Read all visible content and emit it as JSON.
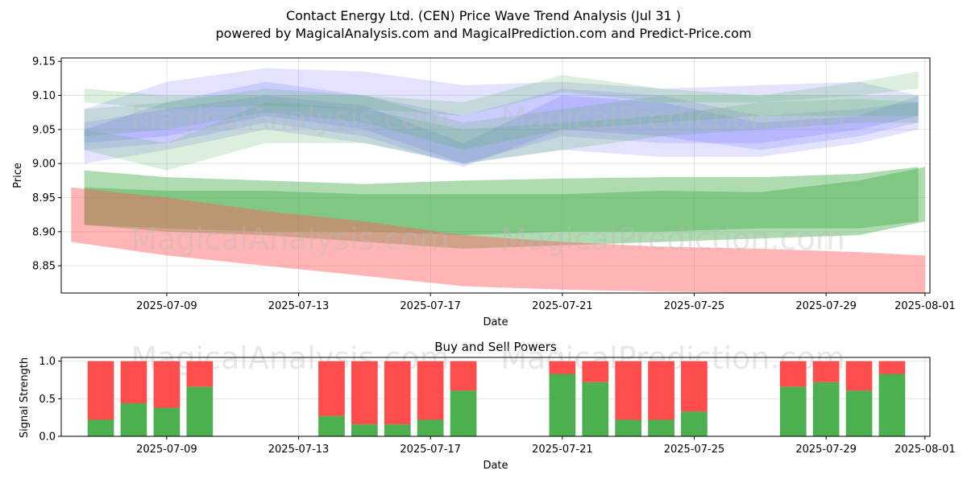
{
  "title_line1": "Contact Energy Ltd. (CEN) Price Wave Trend Analysis (Jul 31 )",
  "title_line2": "powered by MagicalAnalysis.com and MagicalPrediction.com and Predict-Price.com",
  "watermarks": [
    "MagicalAnalysis.com",
    "MagicalPrediction.com"
  ],
  "colors": {
    "green_band": "#4caf50",
    "red_band": "#ff5a5a",
    "blue_band": "#5b5bff",
    "buy": "#4caf50",
    "sell": "#ff4c4c"
  },
  "chart_data": [
    {
      "type": "area",
      "title": "Contact Energy Ltd. (CEN) Price Wave Trend Analysis (Jul 31 )",
      "xlabel": "Date",
      "ylabel": "Price",
      "ylim": [
        8.81,
        9.155
      ],
      "yticks": [
        "8.85",
        "8.90",
        "8.95",
        "9.00",
        "9.05",
        "9.10",
        "9.15"
      ],
      "xticks": [
        "2025-07-09",
        "2025-07-13",
        "2025-07-17",
        "2025-07-21",
        "2025-07-25",
        "2025-07-29",
        "2025-08-01"
      ],
      "xlim_days": [
        -3.2,
        23.15
      ],
      "grid": true,
      "series": [
        {
          "name": "upper-green-band",
          "color": "#4caf50",
          "x": [
            -2.5,
            0,
            3,
            6,
            9,
            12,
            15,
            18,
            21,
            22.8
          ],
          "upper": [
            8.99,
            8.98,
            8.975,
            8.97,
            8.975,
            8.978,
            8.98,
            8.98,
            8.985,
            8.995
          ],
          "lower": [
            8.91,
            8.905,
            8.9,
            8.9,
            8.895,
            8.9,
            8.9,
            8.905,
            8.905,
            8.915
          ]
        },
        {
          "name": "lower-green-band",
          "color": "#4caf50",
          "x": [
            -2.5,
            0,
            3,
            6,
            9,
            12,
            15,
            18,
            21,
            23.0
          ],
          "upper": [
            8.965,
            8.96,
            8.96,
            8.955,
            8.955,
            8.955,
            8.96,
            8.958,
            8.975,
            8.995
          ],
          "lower": [
            8.91,
            8.9,
            8.895,
            8.885,
            8.875,
            8.88,
            8.885,
            8.89,
            8.895,
            8.915
          ]
        },
        {
          "name": "red-band",
          "color": "#ff5a5a",
          "x": [
            -2.9,
            0,
            3,
            6,
            9,
            12,
            15,
            18,
            21,
            23.0
          ],
          "upper": [
            8.965,
            8.95,
            8.93,
            8.915,
            8.895,
            8.885,
            8.878,
            8.875,
            8.87,
            8.865
          ],
          "lower": [
            8.885,
            8.865,
            8.85,
            8.835,
            8.82,
            8.815,
            8.812,
            8.81,
            8.81,
            8.81
          ]
        },
        {
          "name": "blue-band-1",
          "color": "#5b5bff",
          "x": [
            -2.5,
            0,
            3,
            6,
            9,
            12,
            15,
            18,
            21,
            22.8
          ],
          "upper": [
            9.08,
            9.12,
            9.14,
            9.135,
            9.115,
            9.12,
            9.11,
            9.115,
            9.12,
            9.1
          ],
          "lower": [
            9.03,
            9.04,
            9.07,
            9.05,
            9.0,
            9.04,
            9.03,
            9.03,
            9.05,
            9.07
          ]
        },
        {
          "name": "blue-band-2",
          "color": "#5b5bff",
          "x": [
            -2.5,
            0,
            3,
            6,
            9,
            12,
            15,
            18,
            21,
            22.8
          ],
          "upper": [
            9.06,
            9.08,
            9.1,
            9.085,
            9.03,
            9.1,
            9.09,
            9.06,
            9.07,
            9.1
          ],
          "lower": [
            9.02,
            9.03,
            9.06,
            9.04,
            8.995,
            9.05,
            9.04,
            9.02,
            9.04,
            9.06
          ]
        },
        {
          "name": "blue-band-3",
          "color": "#5b5bff",
          "x": [
            -2.5,
            0,
            3,
            6,
            9,
            12,
            15,
            18,
            21,
            22.8
          ],
          "upper": [
            9.05,
            9.09,
            9.12,
            9.1,
            9.07,
            9.11,
            9.1,
            9.07,
            9.08,
            9.09
          ],
          "lower": [
            9.0,
            9.02,
            9.05,
            9.03,
            9.0,
            9.02,
            9.01,
            9.01,
            9.03,
            9.05
          ]
        },
        {
          "name": "green-wave-1",
          "color": "#4caf50",
          "x": [
            -2.5,
            0,
            3,
            6,
            9,
            12,
            15,
            18,
            21,
            22.8
          ],
          "upper": [
            9.11,
            9.1,
            9.1,
            9.1,
            9.09,
            9.13,
            9.11,
            9.1,
            9.12,
            9.135
          ],
          "lower": [
            9.09,
            9.08,
            9.085,
            9.08,
            9.07,
            9.105,
            9.09,
            9.09,
            9.1,
            9.11
          ]
        },
        {
          "name": "green-wave-2",
          "color": "#4caf50",
          "x": [
            -2.5,
            0,
            3,
            6,
            9,
            12,
            15,
            18,
            21,
            22.8
          ],
          "upper": [
            9.05,
            9.03,
            9.09,
            9.08,
            9.05,
            9.06,
            9.07,
            9.09,
            9.095,
            9.09
          ],
          "lower": [
            9.02,
            8.99,
            9.03,
            9.03,
            9.0,
            9.02,
            9.04,
            9.05,
            9.06,
            9.06
          ]
        },
        {
          "name": "green-wave-3",
          "color": "#4caf50",
          "x": [
            -2.5,
            0,
            3,
            6,
            9,
            12,
            15,
            18,
            21,
            22.8
          ],
          "upper": [
            9.08,
            9.09,
            9.11,
            9.1,
            9.06,
            9.08,
            9.1,
            9.1,
            9.1,
            9.1
          ],
          "lower": [
            9.04,
            9.05,
            9.075,
            9.06,
            9.02,
            9.05,
            9.06,
            9.07,
            9.07,
            9.07
          ]
        }
      ]
    },
    {
      "type": "bar",
      "title": "Buy and Sell Powers",
      "xlabel": "Date",
      "ylabel": "Signal Strength",
      "ylim": [
        0,
        1.05
      ],
      "yticks": [
        "0.0",
        "0.5",
        "1.0"
      ],
      "xticks": [
        "2025-07-09",
        "2025-07-13",
        "2025-07-17",
        "2025-07-21",
        "2025-07-25",
        "2025-07-29",
        "2025-08-01"
      ],
      "xlim_days": [
        -3.2,
        23.15
      ],
      "day_offsets": [
        -2,
        -1,
        0,
        1,
        5,
        6,
        7,
        8,
        9,
        12,
        13,
        14,
        15,
        16,
        19,
        20,
        21,
        22
      ],
      "buy": [
        0.22,
        0.44,
        0.38,
        0.66,
        0.27,
        0.16,
        0.16,
        0.22,
        0.61,
        0.83,
        0.72,
        0.22,
        0.22,
        0.33,
        0.66,
        0.72,
        0.61,
        0.83
      ],
      "sell": [
        0.78,
        0.56,
        0.62,
        0.34,
        0.73,
        0.84,
        0.84,
        0.78,
        0.39,
        0.17,
        0.28,
        0.78,
        0.78,
        0.67,
        0.34,
        0.28,
        0.39,
        0.17
      ]
    }
  ]
}
